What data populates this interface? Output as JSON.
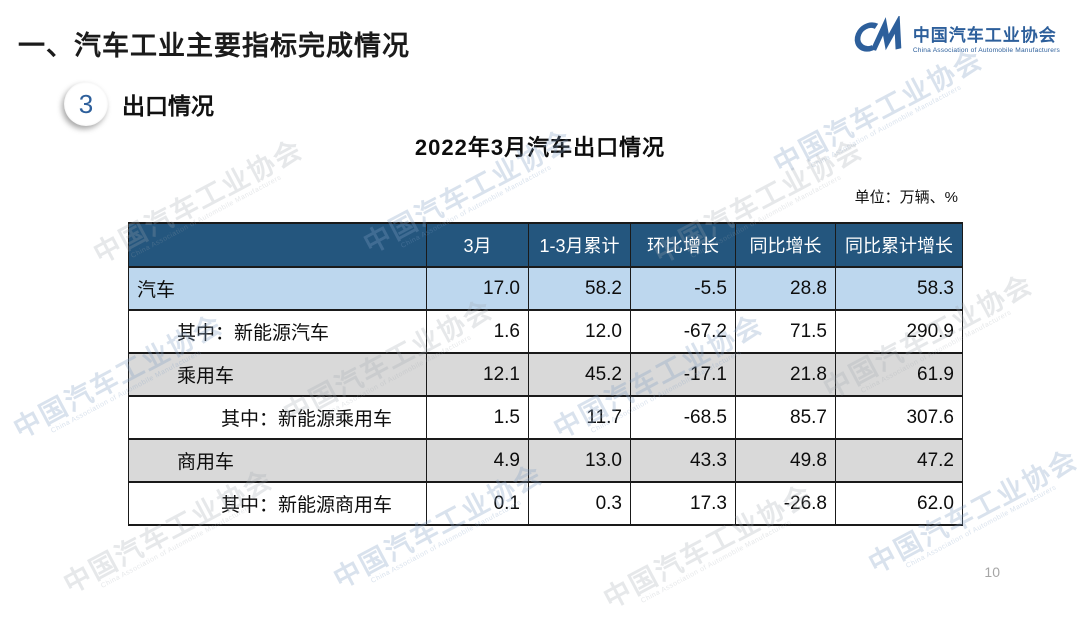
{
  "slide": {
    "title": "一、汽车工业主要指标完成情况",
    "section_number": "3",
    "section_label": "出口情况",
    "table_title": "2022年3月汽车出口情况",
    "unit_note": "单位：万辆、%",
    "page_number": "10"
  },
  "logo": {
    "monogram": "CM",
    "name_cn": "中国汽车工业协会",
    "name_en": "China Association of Automobile Manufacturers",
    "color": "#2d5f9b"
  },
  "watermark": {
    "text_cn": "中国汽车工业协会",
    "text_en": "China Association of Automobile Manufacturers"
  },
  "colors": {
    "header_bg": "#24567E",
    "row_highlight_blue": "#BDD7EE",
    "row_gray": "#D9D9D9",
    "accent_blue": "#2d5f9b"
  },
  "chart_data": {
    "type": "table",
    "title": "2022年3月汽车出口情况",
    "unit": "万辆、%",
    "columns": [
      "",
      "3月",
      "1-3月累计",
      "环比增长",
      "同比增长",
      "同比累计增长"
    ],
    "rows": [
      {
        "label": "汽车",
        "indent": 0,
        "values": [
          "17.0",
          "58.2",
          "-5.5",
          "28.8",
          "58.3"
        ]
      },
      {
        "label": "其中：新能源汽车",
        "indent": 1,
        "values": [
          "1.6",
          "12.0",
          "-67.2",
          "71.5",
          "290.9"
        ]
      },
      {
        "label": "乘用车",
        "indent": 1,
        "values": [
          "12.1",
          "45.2",
          "-17.1",
          "21.8",
          "61.9"
        ]
      },
      {
        "label": "其中：新能源乘用车",
        "indent": 2,
        "values": [
          "1.5",
          "11.7",
          "-68.5",
          "85.7",
          "307.6"
        ]
      },
      {
        "label": "商用车",
        "indent": 1,
        "values": [
          "4.9",
          "13.0",
          "43.3",
          "49.8",
          "47.2"
        ]
      },
      {
        "label": "其中：新能源商用车",
        "indent": 2,
        "values": [
          "0.1",
          "0.3",
          "17.3",
          "-26.8",
          "62.0"
        ]
      }
    ]
  }
}
